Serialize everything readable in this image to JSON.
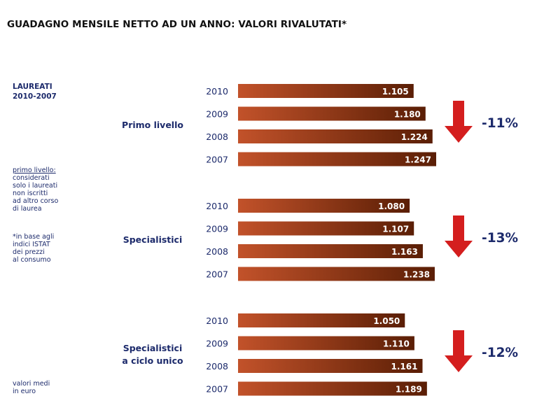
{
  "title": "GUADAGNO MENSILE NETTO AD UN ANNO: VALORI RIVALUTATI*",
  "sidebar": {
    "heading_line1": "LAUREATI",
    "heading_line2": "2010-2007",
    "note1_title": "primo livello:",
    "note1_lines": [
      "considerati",
      "solo i laureati",
      "non iscritti",
      "ad altro corso",
      "di laurea"
    ],
    "note2_lines": [
      "*in base agli",
      "indici ISTAT",
      "dei prezzi",
      "al consumo"
    ],
    "note3_lines": [
      "valori medi",
      "in euro"
    ]
  },
  "colors": {
    "bar_dark": "#5a1e05",
    "bar_light": "#c2522a",
    "arrow": "#d41e1e",
    "text_blue": "#1c2a6b"
  },
  "chart_data": {
    "type": "bar",
    "orientation": "horizontal",
    "groups": [
      {
        "label_lines": [
          "Primo livello"
        ],
        "change": "-11%",
        "years": [
          "2010",
          "2009",
          "2008",
          "2007"
        ],
        "values": [
          1105,
          1180,
          1224,
          1247
        ],
        "value_labels": [
          "1.105",
          "1.180",
          "1.224",
          "1.247"
        ]
      },
      {
        "label_lines": [
          "Specialistici"
        ],
        "change": "-13%",
        "years": [
          "2010",
          "2009",
          "2008",
          "2007"
        ],
        "values": [
          1080,
          1107,
          1163,
          1238
        ],
        "value_labels": [
          "1.080",
          "1.107",
          "1.163",
          "1.238"
        ]
      },
      {
        "label_lines": [
          "Specialistici",
          "a ciclo unico"
        ],
        "change": "-12%",
        "years": [
          "2010",
          "2009",
          "2008",
          "2007"
        ],
        "values": [
          1050,
          1110,
          1161,
          1189
        ],
        "value_labels": [
          "1.050",
          "1.110",
          "1.161",
          "1.189"
        ]
      }
    ]
  }
}
